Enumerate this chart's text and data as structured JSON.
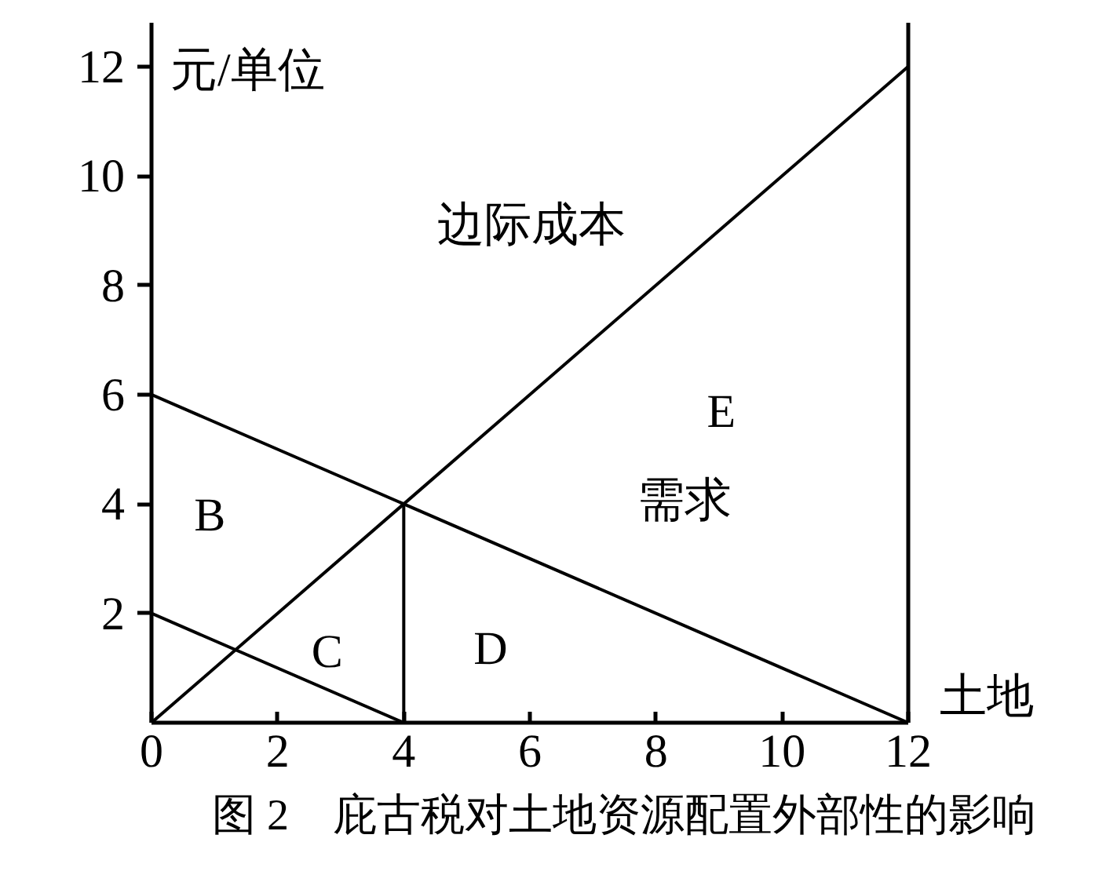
{
  "chart_data": {
    "type": "line",
    "title": "图 2　庇古税对土地资源配置外部性的影响",
    "xlabel": "土地",
    "ylabel": "元/单位",
    "xlim": [
      0,
      12
    ],
    "ylim": [
      0,
      12.8
    ],
    "xticks": [
      0,
      2,
      4,
      6,
      8,
      10,
      12
    ],
    "yticks": [
      2,
      4,
      6,
      8,
      10,
      12
    ],
    "grid": false,
    "series": [
      {
        "name": "边际成本",
        "color": "#000000",
        "x": [
          0,
          12
        ],
        "values": [
          0,
          12
        ]
      },
      {
        "name": "需求",
        "color": "#000000",
        "x": [
          0,
          12
        ],
        "values": [
          6,
          0
        ]
      },
      {
        "color": "#000000",
        "x": [
          0,
          4
        ],
        "values": [
          2,
          0
        ]
      },
      {
        "color": "#000000",
        "x": [
          4,
          4
        ],
        "values": [
          0,
          4
        ]
      }
    ],
    "ref_lines": [
      {
        "axis": "x",
        "value": 12,
        "color": "#000000"
      }
    ],
    "annotations": [
      "E",
      "B",
      "C",
      "D"
    ]
  }
}
